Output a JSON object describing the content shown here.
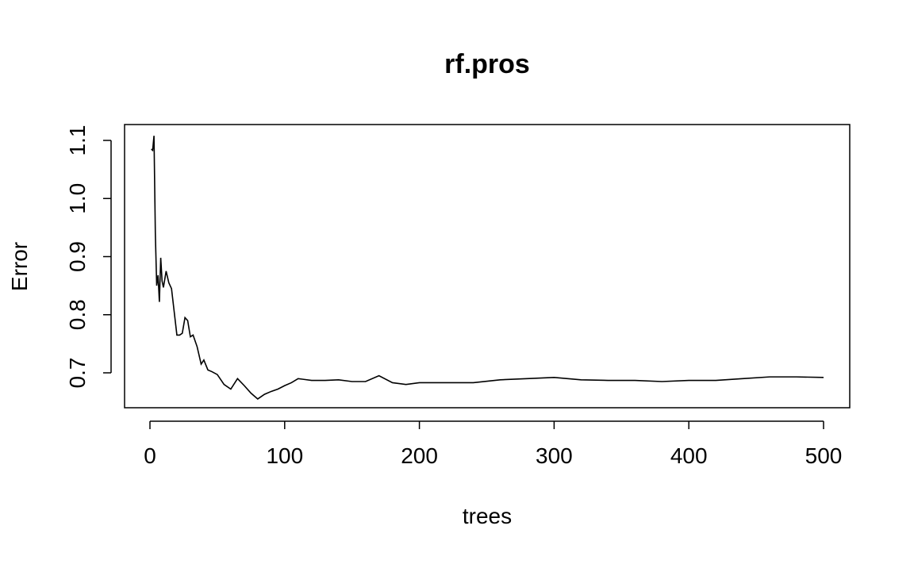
{
  "chart_data": {
    "type": "line",
    "title": "rf.pros",
    "xlabel": "trees",
    "ylabel": "Error",
    "xlim": [
      0,
      500
    ],
    "ylim": [
      0.65,
      1.11
    ],
    "xticks": [
      0,
      100,
      200,
      300,
      400,
      500
    ],
    "xtick_labels": [
      "0",
      "100",
      "200",
      "300",
      "400",
      "500"
    ],
    "yticks": [
      0.7,
      0.8,
      0.9,
      1.0,
      1.1
    ],
    "ytick_labels": [
      "0.7",
      "0.8",
      "0.9",
      "1.0",
      "1.1"
    ],
    "grid": false,
    "series": [
      {
        "x": [
          1,
          2,
          3,
          4,
          5,
          6,
          7,
          8,
          9,
          10,
          12,
          14,
          16,
          18,
          20,
          22,
          24,
          26,
          28,
          30,
          32,
          35,
          38,
          40,
          43,
          46,
          50,
          55,
          60,
          65,
          70,
          75,
          80,
          85,
          90,
          95,
          100,
          105,
          110,
          120,
          130,
          140,
          150,
          160,
          170,
          180,
          190,
          200,
          220,
          240,
          260,
          280,
          300,
          320,
          340,
          360,
          380,
          400,
          420,
          440,
          460,
          480,
          500
        ],
        "y": [
          1.085,
          1.083,
          1.108,
          0.94,
          0.85,
          0.868,
          0.822,
          0.898,
          0.858,
          0.847,
          0.875,
          0.855,
          0.845,
          0.805,
          0.765,
          0.765,
          0.768,
          0.795,
          0.79,
          0.762,
          0.765,
          0.745,
          0.715,
          0.722,
          0.705,
          0.702,
          0.697,
          0.68,
          0.672,
          0.69,
          0.678,
          0.665,
          0.655,
          0.663,
          0.668,
          0.672,
          0.678,
          0.683,
          0.69,
          0.687,
          0.687,
          0.688,
          0.685,
          0.685,
          0.695,
          0.683,
          0.68,
          0.683,
          0.683,
          0.683,
          0.688,
          0.69,
          0.692,
          0.688,
          0.687,
          0.687,
          0.685,
          0.687,
          0.687,
          0.69,
          0.693,
          0.693,
          0.692
        ]
      }
    ]
  }
}
